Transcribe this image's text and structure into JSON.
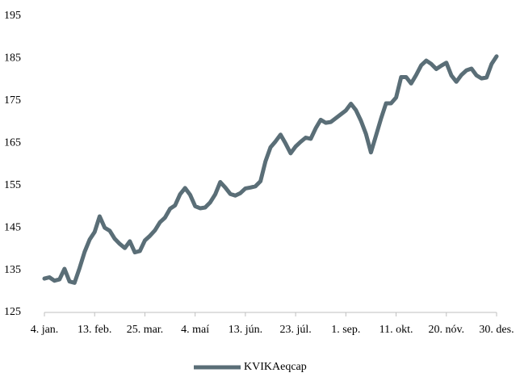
{
  "chart_data": {
    "type": "line",
    "categories": [
      "4. jan.",
      null,
      null,
      null,
      null,
      null,
      null,
      null,
      null,
      null,
      "13. feb.",
      null,
      null,
      null,
      null,
      null,
      null,
      null,
      null,
      null,
      "25. mar.",
      null,
      null,
      null,
      null,
      null,
      null,
      null,
      null,
      null,
      "4. maí",
      null,
      null,
      null,
      null,
      null,
      null,
      null,
      null,
      null,
      "13. jún.",
      null,
      null,
      null,
      null,
      null,
      null,
      null,
      null,
      null,
      "23. júl.",
      null,
      null,
      null,
      null,
      null,
      null,
      null,
      null,
      null,
      "1. sep.",
      null,
      null,
      null,
      null,
      null,
      null,
      null,
      null,
      null,
      "11. okt.",
      null,
      null,
      null,
      null,
      null,
      null,
      null,
      null,
      null,
      "20. nóv.",
      null,
      null,
      null,
      null,
      null,
      null,
      null,
      null,
      null,
      "30. des."
    ],
    "series": [
      {
        "name": "KVIKAeqcap",
        "color": "#5a6e77",
        "values": [
          133,
          133.3,
          132.5,
          132.8,
          135.3,
          132.3,
          132,
          135.5,
          139.3,
          142.2,
          144,
          147.7,
          145,
          144.3,
          142.4,
          141.2,
          140.2,
          141.8,
          139.2,
          139.5,
          142,
          143.1,
          144.4,
          146.3,
          147.4,
          149.5,
          150.3,
          152.9,
          154.4,
          152.8,
          150.1,
          149.6,
          149.8,
          151,
          152.9,
          155.8,
          154.5,
          153,
          152.6,
          153.2,
          154.3,
          154.5,
          154.8,
          156,
          160.7,
          164,
          165.4,
          167,
          164.9,
          162.6,
          164.2,
          165.3,
          166.3,
          166,
          168.5,
          170.5,
          169.8,
          170,
          170.9,
          171.8,
          172.7,
          174.3,
          172.8,
          170.3,
          167.2,
          162.8,
          166.8,
          170.8,
          174.4,
          174.4,
          175.8,
          180.6,
          180.6,
          179.1,
          181.1,
          183.4,
          184.5,
          183.7,
          182.5,
          183.3,
          184,
          181,
          179.5,
          181.1,
          182.2,
          182.6,
          181,
          180.3,
          180.5,
          183.7,
          185.5
        ]
      }
    ],
    "ylim": [
      125,
      195
    ],
    "yticks": [
      125,
      135,
      145,
      155,
      165,
      175,
      185,
      195
    ],
    "grid": false,
    "legend": "bottom"
  }
}
